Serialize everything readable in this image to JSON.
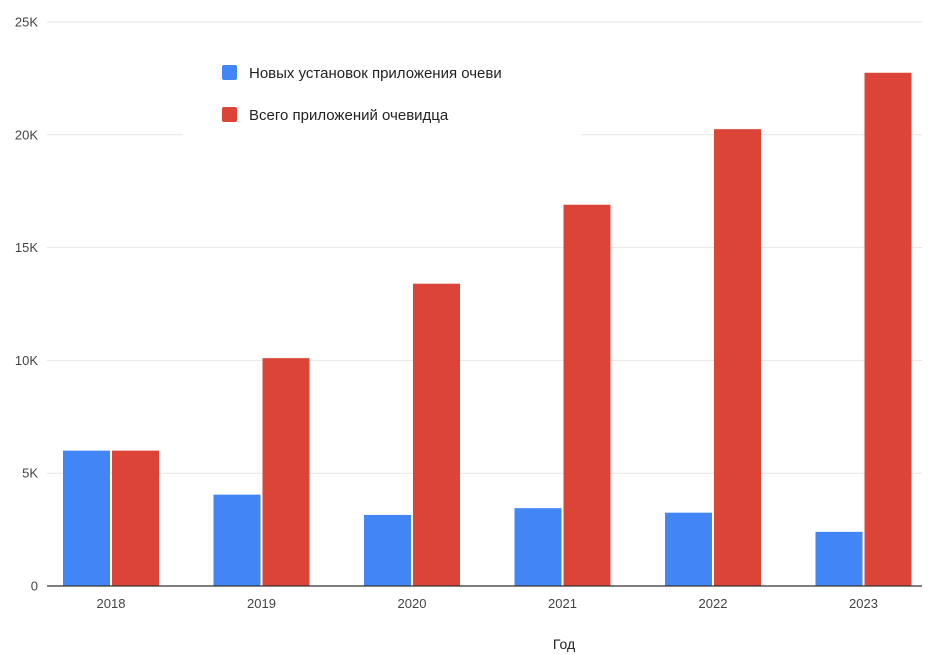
{
  "chart_data": {
    "type": "bar",
    "title": "",
    "xlabel": "Год",
    "ylabel": "",
    "categories": [
      "2018",
      "2019",
      "2020",
      "2021",
      "2022",
      "2023"
    ],
    "series": [
      {
        "name": "Новых установок приложения очеви",
        "color": "#4285f4",
        "values": [
          6000,
          4050,
          3150,
          3450,
          3250,
          2400
        ]
      },
      {
        "name": "Всего приложений очевидца",
        "color": "#db4437",
        "values": [
          6000,
          10100,
          13400,
          16900,
          20250,
          22750
        ]
      }
    ],
    "ylim": [
      0,
      25000
    ],
    "y_ticks": [
      {
        "value": 0,
        "label": "0"
      },
      {
        "value": 5000,
        "label": "5K"
      },
      {
        "value": 10000,
        "label": "10K"
      },
      {
        "value": 15000,
        "label": "15K"
      },
      {
        "value": 20000,
        "label": "20K"
      },
      {
        "value": 25000,
        "label": "25K"
      }
    ],
    "grid": true,
    "legend_position": "top-left inside plot"
  }
}
